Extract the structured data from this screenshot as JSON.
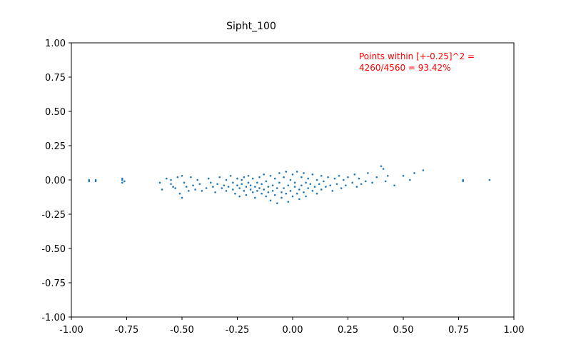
{
  "chart_data": {
    "type": "scatter",
    "title": "Sipht_100",
    "xlabel": "",
    "ylabel": "",
    "xlim": [
      -1.0,
      1.0
    ],
    "ylim": [
      -1.0,
      1.0
    ],
    "grid": false,
    "x_ticks": [
      "-1.00",
      "-0.75",
      "-0.50",
      "-0.25",
      "0.00",
      "0.25",
      "0.50",
      "0.75",
      "1.00"
    ],
    "y_ticks": [
      "1.00",
      "0.75",
      "0.50",
      "0.25",
      "0.00",
      "-0.25",
      "-0.50",
      "-0.75",
      "-1.00"
    ],
    "series_color": "#1f77b4",
    "annotation": {
      "lines": [
        "Points within [+-0.25]^2 =",
        "4260/4560 = 93.42%"
      ],
      "color": "#ff0000"
    },
    "points": [
      [
        -0.92,
        0.0
      ],
      [
        -0.92,
        -0.01
      ],
      [
        -0.89,
        0.0
      ],
      [
        -0.89,
        -0.01
      ],
      [
        -0.77,
        0.0
      ],
      [
        -0.77,
        -0.02
      ],
      [
        -0.77,
        0.01
      ],
      [
        -0.76,
        -0.01
      ],
      [
        -0.6,
        -0.02
      ],
      [
        -0.59,
        -0.07
      ],
      [
        -0.57,
        0.01
      ],
      [
        -0.55,
        0.0
      ],
      [
        -0.55,
        -0.03
      ],
      [
        -0.54,
        -0.05
      ],
      [
        -0.53,
        -0.06
      ],
      [
        -0.52,
        0.02
      ],
      [
        -0.51,
        -0.1
      ],
      [
        -0.5,
        -0.13
      ],
      [
        -0.5,
        0.03
      ],
      [
        -0.49,
        -0.02
      ],
      [
        -0.48,
        -0.05
      ],
      [
        -0.47,
        -0.08
      ],
      [
        -0.46,
        0.02
      ],
      [
        -0.45,
        -0.04
      ],
      [
        -0.44,
        -0.07
      ],
      [
        -0.43,
        0.0
      ],
      [
        -0.42,
        -0.03
      ],
      [
        -0.41,
        -0.08
      ],
      [
        -0.39,
        -0.06
      ],
      [
        -0.38,
        0.01
      ],
      [
        -0.37,
        -0.02
      ],
      [
        -0.36,
        -0.05
      ],
      [
        -0.35,
        -0.09
      ],
      [
        -0.34,
        -0.03
      ],
      [
        -0.33,
        0.02
      ],
      [
        -0.32,
        -0.06
      ],
      [
        -0.31,
        -0.04
      ],
      [
        -0.3,
        -0.08
      ],
      [
        -0.3,
        0.0
      ],
      [
        -0.29,
        -0.05
      ],
      [
        -0.28,
        0.03
      ],
      [
        -0.27,
        -0.07
      ],
      [
        -0.27,
        -0.02
      ],
      [
        -0.26,
        -0.1
      ],
      [
        -0.25,
        0.01
      ],
      [
        -0.25,
        -0.04
      ],
      [
        -0.24,
        -0.06
      ],
      [
        -0.24,
        -0.12
      ],
      [
        -0.23,
        0.0
      ],
      [
        -0.23,
        -0.03
      ],
      [
        -0.22,
        -0.08
      ],
      [
        -0.22,
        0.02
      ],
      [
        -0.21,
        -0.05
      ],
      [
        -0.21,
        -0.11
      ],
      [
        -0.2,
        -0.02
      ],
      [
        -0.2,
        0.03
      ],
      [
        -0.19,
        -0.07
      ],
      [
        -0.19,
        -0.04
      ],
      [
        -0.18,
        -0.09
      ],
      [
        -0.18,
        0.01
      ],
      [
        -0.17,
        -0.05
      ],
      [
        -0.17,
        -0.13
      ],
      [
        -0.16,
        -0.02
      ],
      [
        -0.16,
        -0.08
      ],
      [
        -0.15,
        0.02
      ],
      [
        -0.15,
        -0.06
      ],
      [
        -0.14,
        -0.1
      ],
      [
        -0.14,
        -0.03
      ],
      [
        -0.13,
        0.04
      ],
      [
        -0.13,
        -0.07
      ],
      [
        -0.12,
        -0.12
      ],
      [
        -0.12,
        -0.01
      ],
      [
        -0.11,
        -0.05
      ],
      [
        -0.11,
        -0.09
      ],
      [
        -0.1,
        0.03
      ],
      [
        -0.1,
        -0.15
      ],
      [
        -0.09,
        -0.04
      ],
      [
        -0.09,
        -0.08
      ],
      [
        -0.08,
        0.01
      ],
      [
        -0.08,
        -0.11
      ],
      [
        -0.07,
        -0.06
      ],
      [
        -0.07,
        -0.17
      ],
      [
        -0.06,
        0.05
      ],
      [
        -0.06,
        -0.02
      ],
      [
        -0.05,
        -0.09
      ],
      [
        -0.05,
        -0.13
      ],
      [
        -0.04,
        0.02
      ],
      [
        -0.04,
        -0.06
      ],
      [
        -0.03,
        -0.1
      ],
      [
        -0.03,
        0.06
      ],
      [
        -0.02,
        -0.04
      ],
      [
        -0.02,
        -0.16
      ],
      [
        -0.01,
        0.0
      ],
      [
        -0.01,
        -0.08
      ],
      [
        0.0,
        -0.12
      ],
      [
        0.0,
        0.04
      ],
      [
        0.01,
        -0.05
      ],
      [
        0.01,
        -0.02
      ],
      [
        0.02,
        -0.1
      ],
      [
        0.02,
        0.06
      ],
      [
        0.03,
        -0.07
      ],
      [
        0.03,
        -0.14
      ],
      [
        0.04,
        0.02
      ],
      [
        0.04,
        -0.04
      ],
      [
        0.05,
        -0.09
      ],
      [
        0.05,
        0.05
      ],
      [
        0.06,
        -0.02
      ],
      [
        0.06,
        -0.12
      ],
      [
        0.07,
        0.01
      ],
      [
        0.07,
        -0.06
      ],
      [
        0.08,
        -0.03
      ],
      [
        0.09,
        -0.08
      ],
      [
        0.09,
        0.04
      ],
      [
        0.1,
        -0.05
      ],
      [
        0.11,
        0.0
      ],
      [
        0.11,
        -0.1
      ],
      [
        0.12,
        -0.03
      ],
      [
        0.13,
        0.03
      ],
      [
        0.13,
        -0.07
      ],
      [
        0.14,
        -0.01
      ],
      [
        0.15,
        -0.05
      ],
      [
        0.16,
        0.02
      ],
      [
        0.17,
        -0.04
      ],
      [
        0.18,
        -0.08
      ],
      [
        0.19,
        0.01
      ],
      [
        0.2,
        -0.03
      ],
      [
        0.21,
        0.03
      ],
      [
        0.22,
        -0.06
      ],
      [
        0.23,
        0.0
      ],
      [
        0.24,
        -0.04
      ],
      [
        0.25,
        0.02
      ],
      [
        0.27,
        -0.02
      ],
      [
        0.28,
        0.04
      ],
      [
        0.29,
        -0.05
      ],
      [
        0.3,
        0.01
      ],
      [
        0.31,
        -0.03
      ],
      [
        0.33,
        -0.01
      ],
      [
        0.34,
        0.05
      ],
      [
        0.36,
        -0.02
      ],
      [
        0.38,
        0.02
      ],
      [
        0.4,
        0.1
      ],
      [
        0.41,
        0.08
      ],
      [
        0.42,
        -0.01
      ],
      [
        0.43,
        0.03
      ],
      [
        0.46,
        -0.04
      ],
      [
        0.5,
        0.03
      ],
      [
        0.53,
        0.0
      ],
      [
        0.55,
        0.05
      ],
      [
        0.59,
        0.07
      ],
      [
        0.77,
        0.0
      ],
      [
        0.77,
        -0.01
      ],
      [
        0.89,
        0.0
      ]
    ]
  }
}
